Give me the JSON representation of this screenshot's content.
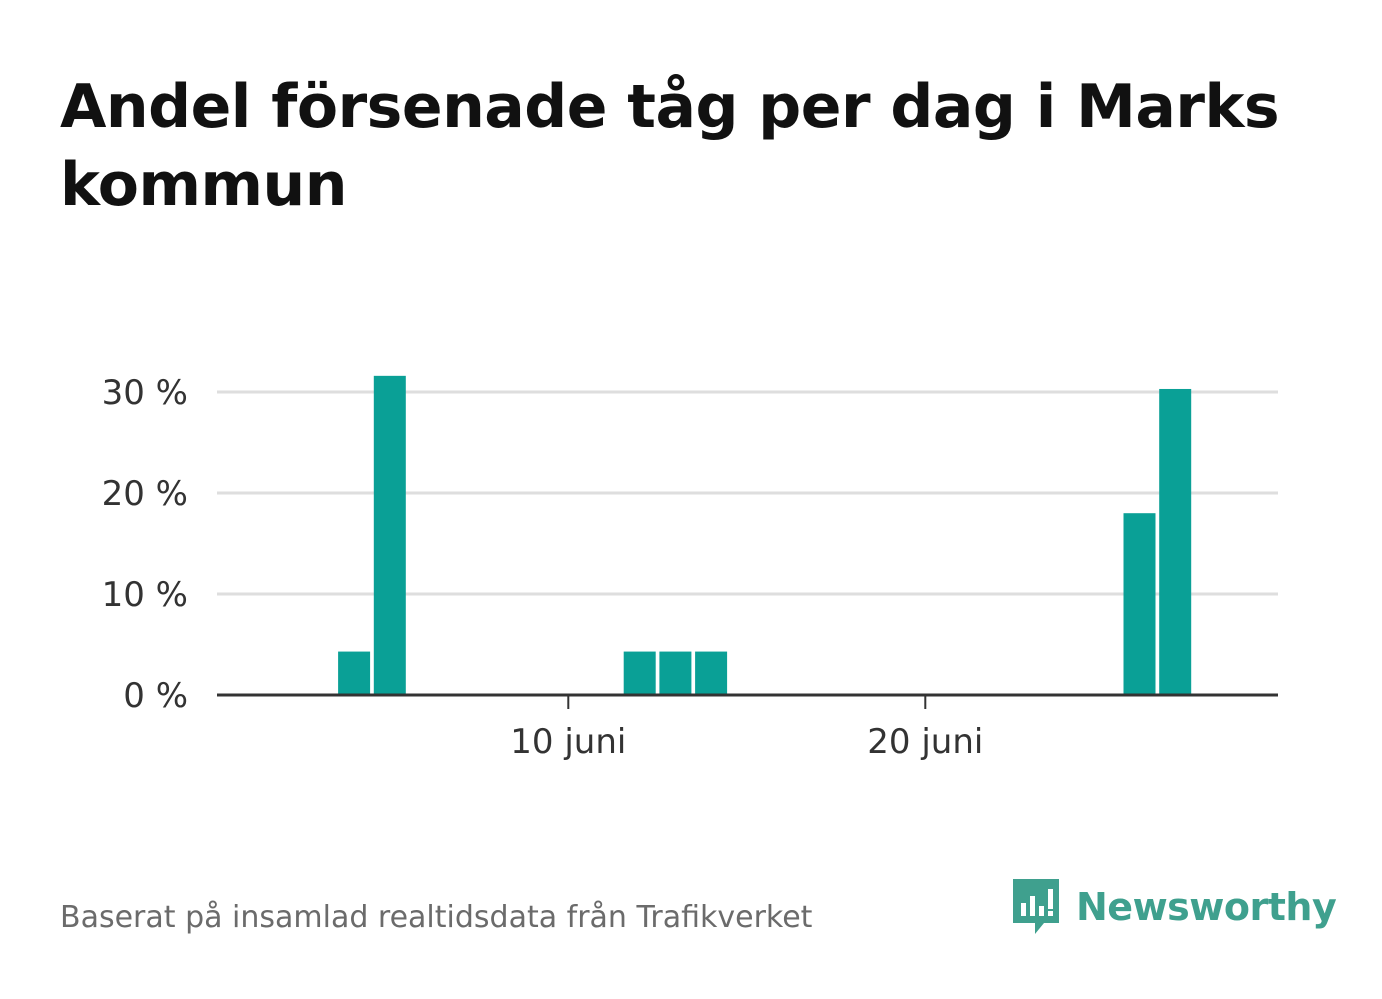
{
  "title": "Andel försenade tåg per dag i Marks kommun",
  "source_note": "Baserat på insamlad realtidsdata från Trafikverket",
  "brand": {
    "name": "Newsworthy",
    "icon": "newsworthy-logo-icon",
    "color": "#3fa08e"
  },
  "colors": {
    "bar": "#0aa096",
    "grid": "#dedede",
    "axis": "#333333",
    "tick_text": "#333333"
  },
  "chart_data": {
    "type": "bar",
    "x_unit": "day of June",
    "x": [
      1,
      2,
      3,
      4,
      5,
      6,
      7,
      8,
      9,
      10,
      11,
      12,
      13,
      14,
      15,
      16,
      17,
      18,
      19,
      20,
      21,
      22,
      23,
      24,
      25,
      26,
      27,
      28,
      29,
      30
    ],
    "values": [
      0,
      0,
      0,
      4.3,
      31.6,
      0,
      0,
      0,
      0,
      0,
      0,
      4.3,
      4.3,
      4.3,
      0,
      0,
      0,
      0,
      0,
      0,
      0,
      0,
      0,
      0,
      0,
      18,
      30.3,
      0,
      0,
      0
    ],
    "ylim": [
      0,
      34
    ],
    "y_ticks": [
      {
        "value": 0,
        "label": "0 %"
      },
      {
        "value": 10,
        "label": "10 %"
      },
      {
        "value": 20,
        "label": "20 %"
      },
      {
        "value": 30,
        "label": "30 %"
      }
    ],
    "x_ticks": [
      {
        "value": 10,
        "label": "10 juni"
      },
      {
        "value": 20,
        "label": "20 juni"
      }
    ],
    "grid": true,
    "legend": "none"
  }
}
